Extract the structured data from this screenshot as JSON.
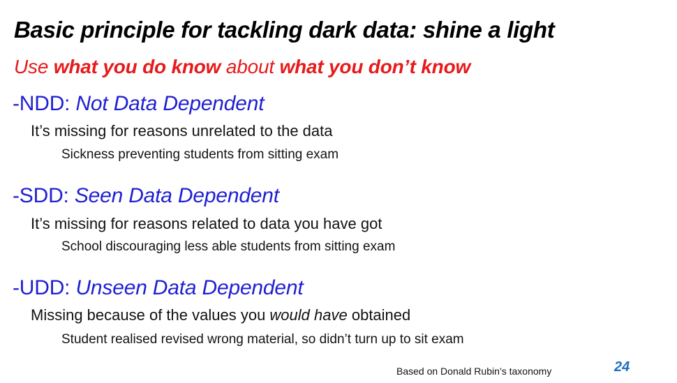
{
  "title": "Basic principle for tackling dark data: shine a light",
  "subtitle": {
    "part1": "Use ",
    "part2": "what you do know",
    "part3": " about ",
    "part4": "what you don’t know"
  },
  "categories": [
    {
      "prefix": "-NDD: ",
      "name": "Not Data Dependent",
      "description": "It’s missing for reasons unrelated to the data",
      "example": "Sickness preventing students from sitting exam"
    },
    {
      "prefix": "-SDD: ",
      "name": "Seen Data Dependent",
      "description": "It’s missing for reasons related to data you have got",
      "example": "School discouraging less able students from sitting exam"
    },
    {
      "prefix": "-UDD: ",
      "name": "Unseen Data Dependent",
      "description_part1": "Missing because of the values you ",
      "description_part2": "would have",
      "description_part3": " obtained",
      "example": "Student realised revised wrong material, so didn’t turn up to sit exam"
    }
  ],
  "footer": {
    "note": "Based on Donald Rubin’s taxonomy",
    "page_number": "24"
  },
  "colors": {
    "title": "#000000",
    "subtitle_red": "#e8191a",
    "heading_blue": "#1f1fd2",
    "page_number_blue": "#1f6fbf",
    "body_text": "#111111"
  }
}
